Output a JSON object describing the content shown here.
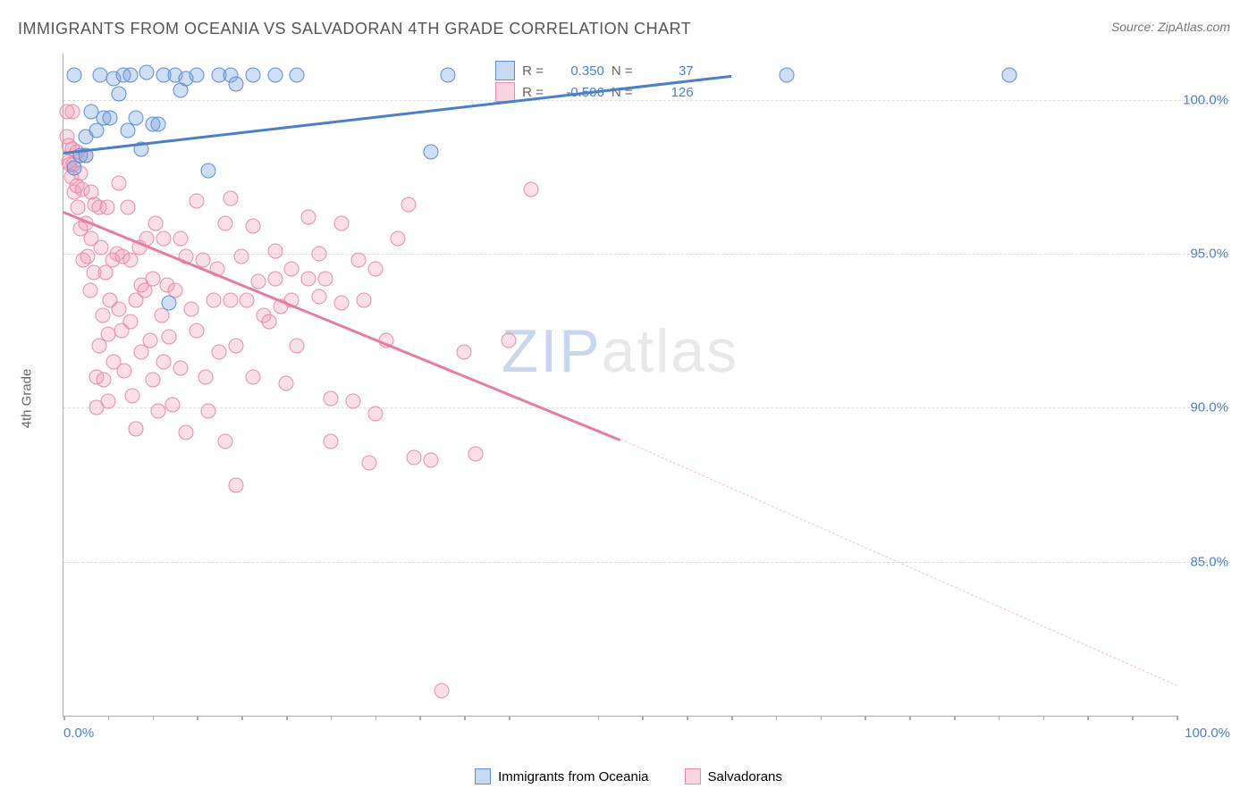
{
  "title": "IMMIGRANTS FROM OCEANIA VS SALVADORAN 4TH GRADE CORRELATION CHART",
  "source": "Source: ZipAtlas.com",
  "watermark": {
    "z": "ZIP",
    "rest": "atlas"
  },
  "chart": {
    "type": "scatter",
    "ylabel": "4th Grade",
    "xlim": [
      0,
      100
    ],
    "ylim": [
      80,
      101.5
    ],
    "xtick_0": "0.0%",
    "xtick_100": "100.0%",
    "yticks": [
      85.0,
      90.0,
      95.0,
      100.0
    ],
    "ytick_labels": [
      "85.0%",
      "90.0%",
      "95.0%",
      "100.0%"
    ],
    "xtick_positions": [
      0,
      4,
      8,
      12,
      16,
      20,
      24,
      28,
      32,
      36,
      40,
      48,
      52,
      56,
      60,
      64,
      68,
      72,
      76,
      80,
      84,
      88,
      92,
      96,
      100
    ],
    "background_color": "#ffffff",
    "grid_color": "#dddddd",
    "axis_color": "#aaaaaa",
    "tick_label_color": "#4a7fc9",
    "marker_size": 17,
    "series": {
      "blue": {
        "label": "Immigrants from Oceania",
        "color_fill": "rgba(120,160,220,0.35)",
        "color_stroke": "#5b8dd6",
        "R": "0.350",
        "N": "37",
        "trend": {
          "x1": 0,
          "y1": 98.3,
          "x2": 60,
          "y2": 100.8,
          "dash_x2": 100
        },
        "points": [
          [
            1,
            97.8
          ],
          [
            1,
            100.8
          ],
          [
            1.5,
            98.2
          ],
          [
            2,
            98.2
          ],
          [
            2,
            98.8
          ],
          [
            2.5,
            99.6
          ],
          [
            3,
            99.0
          ],
          [
            3.3,
            100.8
          ],
          [
            3.6,
            99.4
          ],
          [
            4.2,
            99.4
          ],
          [
            4.5,
            100.7
          ],
          [
            5,
            100.2
          ],
          [
            5.4,
            100.8
          ],
          [
            5.8,
            99.0
          ],
          [
            6,
            100.8
          ],
          [
            6.5,
            99.4
          ],
          [
            7,
            98.4
          ],
          [
            7.5,
            100.9
          ],
          [
            8,
            99.2
          ],
          [
            8.5,
            99.2
          ],
          [
            9,
            100.8
          ],
          [
            9.5,
            93.4
          ],
          [
            10,
            100.8
          ],
          [
            10.5,
            100.3
          ],
          [
            11,
            100.7
          ],
          [
            12,
            100.8
          ],
          [
            13,
            97.7
          ],
          [
            14,
            100.8
          ],
          [
            15,
            100.8
          ],
          [
            15.5,
            100.5
          ],
          [
            17,
            100.8
          ],
          [
            19,
            100.8
          ],
          [
            21,
            100.8
          ],
          [
            33,
            98.3
          ],
          [
            34.5,
            100.8
          ],
          [
            65,
            100.8
          ],
          [
            85,
            100.8
          ]
        ]
      },
      "pink": {
        "label": "Salvadorans",
        "color_fill": "rgba(240,150,180,0.3)",
        "color_stroke": "#e88ca8",
        "R": "-0.506",
        "N": "126",
        "trend": {
          "x1": 0,
          "y1": 96.4,
          "x2": 50,
          "y2": 89.0,
          "dash_x2": 100,
          "dash_y2": 81.0
        },
        "points": [
          [
            0.3,
            98.8
          ],
          [
            0.3,
            99.6
          ],
          [
            0.5,
            98.0
          ],
          [
            0.5,
            98.5
          ],
          [
            0.6,
            97.9
          ],
          [
            0.7,
            97.5
          ],
          [
            0.8,
            98.4
          ],
          [
            0.8,
            99.6
          ],
          [
            0.9,
            97.9
          ],
          [
            1.0,
            97.0
          ],
          [
            1.2,
            97.2
          ],
          [
            1.2,
            98.3
          ],
          [
            1.3,
            96.5
          ],
          [
            1.5,
            97.6
          ],
          [
            1.5,
            95.8
          ],
          [
            1.7,
            97.1
          ],
          [
            1.8,
            94.8
          ],
          [
            2.0,
            98.2
          ],
          [
            2.0,
            96.0
          ],
          [
            2.2,
            94.9
          ],
          [
            2.4,
            93.8
          ],
          [
            2.5,
            97.0
          ],
          [
            2.5,
            95.5
          ],
          [
            2.7,
            94.4
          ],
          [
            2.8,
            96.6
          ],
          [
            3.0,
            91.0
          ],
          [
            3.0,
            90.0
          ],
          [
            3.2,
            92.0
          ],
          [
            3.2,
            96.5
          ],
          [
            3.4,
            95.2
          ],
          [
            3.5,
            93.0
          ],
          [
            3.6,
            90.9
          ],
          [
            3.8,
            94.4
          ],
          [
            3.9,
            96.5
          ],
          [
            4.0,
            92.4
          ],
          [
            4.0,
            90.2
          ],
          [
            4.2,
            93.5
          ],
          [
            4.4,
            94.8
          ],
          [
            4.5,
            91.5
          ],
          [
            4.8,
            95.0
          ],
          [
            5.0,
            93.2
          ],
          [
            5.0,
            97.3
          ],
          [
            5.2,
            92.5
          ],
          [
            5.3,
            94.9
          ],
          [
            5.5,
            91.2
          ],
          [
            5.8,
            96.5
          ],
          [
            6.0,
            94.8
          ],
          [
            6.0,
            92.8
          ],
          [
            6.2,
            90.4
          ],
          [
            6.5,
            93.5
          ],
          [
            6.5,
            89.3
          ],
          [
            6.8,
            95.2
          ],
          [
            7.0,
            91.8
          ],
          [
            7.0,
            94.0
          ],
          [
            7.3,
            93.8
          ],
          [
            7.5,
            95.5
          ],
          [
            7.8,
            92.2
          ],
          [
            8.0,
            90.9
          ],
          [
            8.0,
            94.2
          ],
          [
            8.3,
            96.0
          ],
          [
            8.5,
            89.9
          ],
          [
            8.8,
            93.0
          ],
          [
            9.0,
            95.5
          ],
          [
            9.0,
            91.5
          ],
          [
            9.3,
            94.0
          ],
          [
            9.5,
            92.3
          ],
          [
            9.8,
            90.1
          ],
          [
            10.0,
            93.8
          ],
          [
            10.5,
            95.5
          ],
          [
            10.5,
            91.3
          ],
          [
            11.0,
            94.9
          ],
          [
            11.0,
            89.2
          ],
          [
            11.5,
            93.2
          ],
          [
            12.0,
            96.7
          ],
          [
            12.0,
            92.5
          ],
          [
            12.5,
            94.8
          ],
          [
            12.8,
            91.0
          ],
          [
            13.0,
            89.9
          ],
          [
            13.5,
            93.5
          ],
          [
            13.8,
            94.5
          ],
          [
            14.0,
            91.8
          ],
          [
            14.5,
            96.0
          ],
          [
            14.5,
            88.9
          ],
          [
            15.0,
            96.8
          ],
          [
            15.0,
            93.5
          ],
          [
            15.5,
            92.0
          ],
          [
            15.5,
            87.5
          ],
          [
            16.0,
            94.9
          ],
          [
            16.5,
            93.5
          ],
          [
            17.0,
            95.9
          ],
          [
            17.0,
            91.0
          ],
          [
            17.5,
            94.1
          ],
          [
            18.0,
            93.0
          ],
          [
            18.5,
            92.8
          ],
          [
            19.0,
            95.1
          ],
          [
            19.0,
            94.2
          ],
          [
            19.5,
            93.3
          ],
          [
            20.0,
            90.8
          ],
          [
            20.5,
            94.5
          ],
          [
            20.5,
            93.5
          ],
          [
            21.0,
            92.0
          ],
          [
            22.0,
            94.2
          ],
          [
            22.0,
            96.2
          ],
          [
            23.0,
            93.6
          ],
          [
            23.0,
            95.0
          ],
          [
            23.5,
            94.2
          ],
          [
            24.0,
            90.3
          ],
          [
            24.0,
            88.9
          ],
          [
            25.0,
            96.0
          ],
          [
            25.0,
            93.4
          ],
          [
            26.0,
            90.2
          ],
          [
            26.5,
            94.8
          ],
          [
            27.0,
            93.5
          ],
          [
            27.5,
            88.2
          ],
          [
            28.0,
            94.5
          ],
          [
            28.0,
            89.8
          ],
          [
            29.0,
            92.2
          ],
          [
            30.0,
            95.5
          ],
          [
            31.0,
            96.6
          ],
          [
            31.5,
            88.4
          ],
          [
            33.0,
            88.3
          ],
          [
            34.0,
            80.8
          ],
          [
            36.0,
            91.8
          ],
          [
            37.0,
            88.5
          ],
          [
            40.0,
            92.2
          ],
          [
            42.0,
            97.1
          ]
        ]
      }
    }
  },
  "legend_top": {
    "r_label": "R =",
    "n_label": "N ="
  }
}
